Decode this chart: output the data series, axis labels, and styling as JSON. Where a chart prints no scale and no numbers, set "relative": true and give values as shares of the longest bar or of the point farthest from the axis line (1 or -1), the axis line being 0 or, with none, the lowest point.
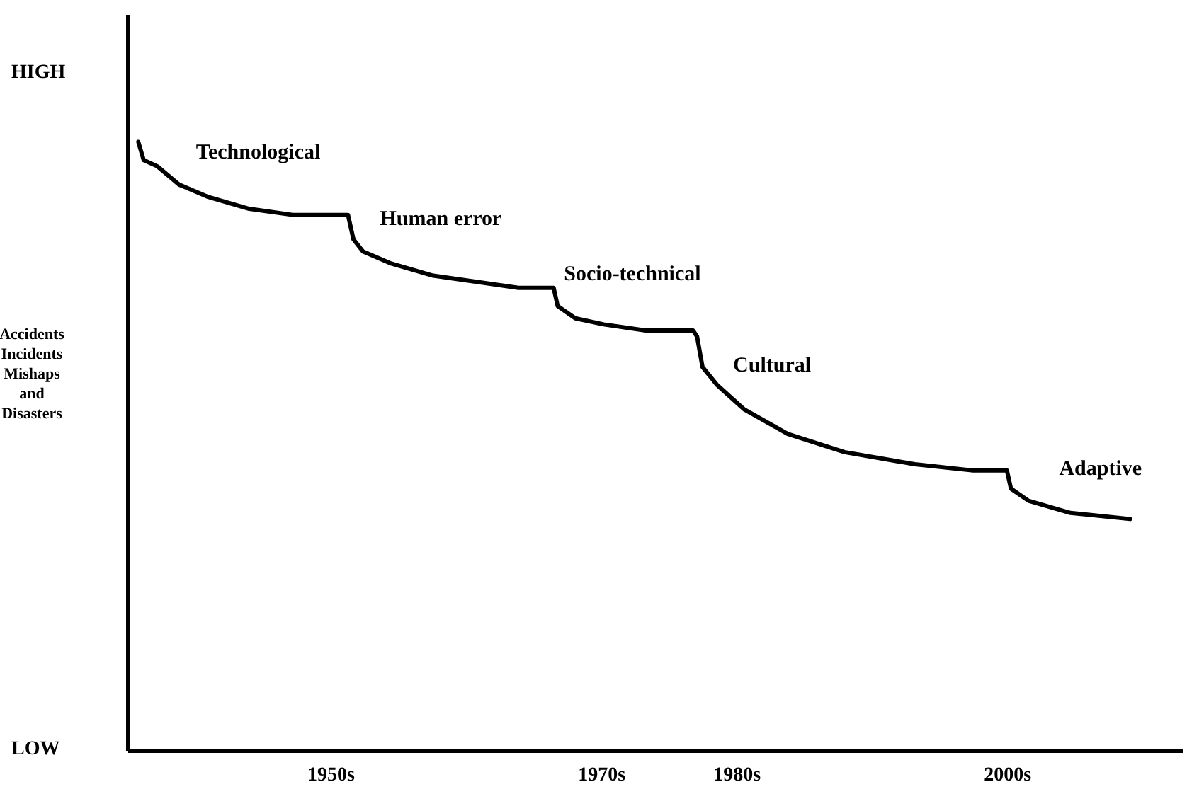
{
  "chart_data": {
    "type": "line",
    "relative": true,
    "ylabel": "Accidents Incidents Mishaps and Disasters",
    "x": [
      1935.8,
      1936.2,
      1937.2,
      1938.8,
      1940.9,
      1944.0,
      1947.2,
      1951.0,
      1951.3,
      1951.7,
      1952.4,
      1954.5,
      1957.6,
      1960.8,
      1963.9,
      1966.2,
      1966.5,
      1966.8,
      1968.1,
      1970.2,
      1973.3,
      1976.8,
      1977.1,
      1977.5,
      1978.6,
      1980.6,
      1983.8,
      1988.0,
      1993.2,
      1997.4,
      1999.8,
      2000.0,
      2000.3,
      2001.6,
      2004.7,
      2009.1
    ],
    "series": [
      {
        "color": "#000000",
        "values": [
          1,
          0.97,
          0.96,
          0.93,
          0.91,
          0.89,
          0.88,
          0.88,
          0.88,
          0.84,
          0.82,
          0.8,
          0.78,
          0.77,
          0.76,
          0.76,
          0.76,
          0.73,
          0.71,
          0.7,
          0.69,
          0.69,
          0.68,
          0.63,
          0.6,
          0.56,
          0.52,
          0.49,
          0.47,
          0.46,
          0.46,
          0.46,
          0.43,
          0.41,
          0.39,
          0.38
        ]
      }
    ],
    "xlim": [
      1935,
      2013
    ],
    "xticks": [
      {
        "value": 1950,
        "label": "1950s"
      },
      {
        "value": 1970,
        "label": "1970s"
      },
      {
        "value": 1980,
        "label": "1980s"
      },
      {
        "value": 2000,
        "label": "2000s"
      }
    ],
    "line_style": "solid",
    "annotations": [
      "HIGH",
      "LOW",
      {
        "text": "Technological",
        "x": 1940.9,
        "y": 0.91
      },
      {
        "text": "Human error",
        "x": 1954.5,
        "y": 0.8
      },
      {
        "text": "Socio-technical",
        "x": 1968.1,
        "y": 0.71
      },
      {
        "text": "Cultural",
        "x": 1980.6,
        "y": 0.56
      },
      {
        "text": "Adaptive",
        "x": 2004.7,
        "y": 0.39
      }
    ]
  }
}
